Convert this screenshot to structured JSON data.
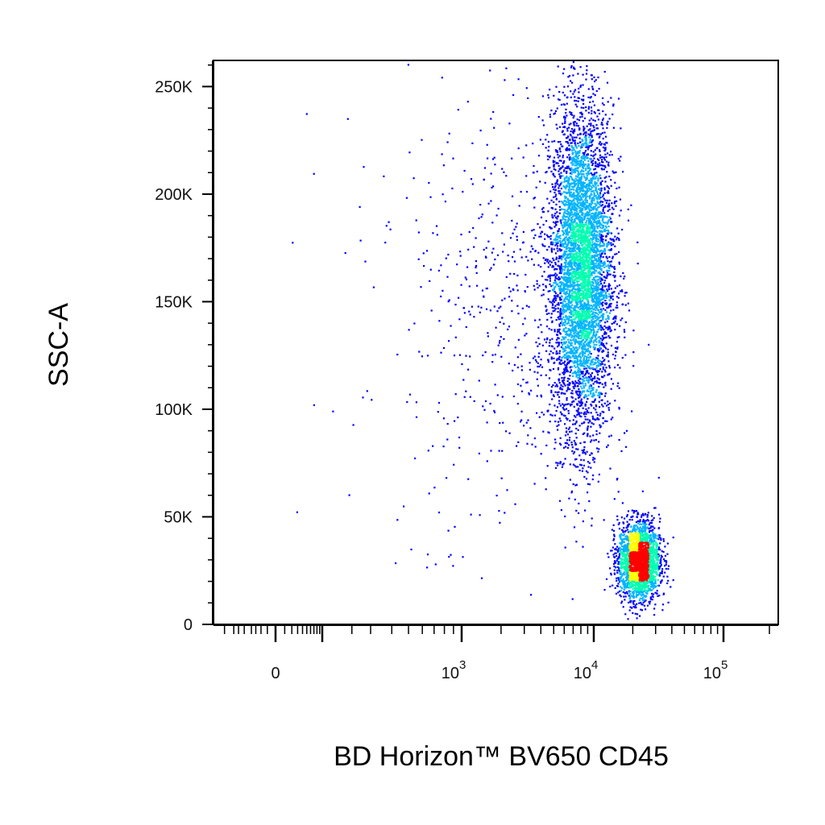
{
  "chart_data": {
    "type": "scatter",
    "subtype": "flow-cytometry-density-dot-plot",
    "xlabel": "BD Horizon™ BV650 CD45",
    "ylabel": "SSC-A",
    "x_scale": "biexponential",
    "y_scale": "linear",
    "ylim": [
      0,
      262144
    ],
    "xlim": [
      -200,
      200000
    ],
    "x_ticks": [
      {
        "base": "0",
        "exp": "",
        "value": 0
      },
      {
        "base": "10",
        "exp": "3",
        "value": 1000
      },
      {
        "base": "10",
        "exp": "4",
        "value": 10000
      },
      {
        "base": "10",
        "exp": "5",
        "value": 100000
      }
    ],
    "y_ticks": [
      {
        "label": "0",
        "value": 0
      },
      {
        "label": "50K",
        "value": 50000
      },
      {
        "label": "100K",
        "value": 100000
      },
      {
        "label": "150K",
        "value": 150000
      },
      {
        "label": "200K",
        "value": 200000
      },
      {
        "label": "250K",
        "value": 250000
      }
    ],
    "density_colors": [
      "#0000ff",
      "#00b4ff",
      "#00ffb0",
      "#ffff00",
      "#ff0000"
    ],
    "populations": [
      {
        "x_center": 8000,
        "x_spread": 0.12,
        "y_center": 165000,
        "y_spread": 38000,
        "count": 5200
      },
      {
        "x_center": 22000,
        "x_spread": 0.08,
        "y_center": 30000,
        "y_spread": 9000,
        "count": 2400
      },
      {
        "x_center": 2500,
        "x_spread": 0.35,
        "y_center": 150000,
        "y_spread": 50000,
        "count": 500
      }
    ],
    "grid": false,
    "legend": "none"
  }
}
